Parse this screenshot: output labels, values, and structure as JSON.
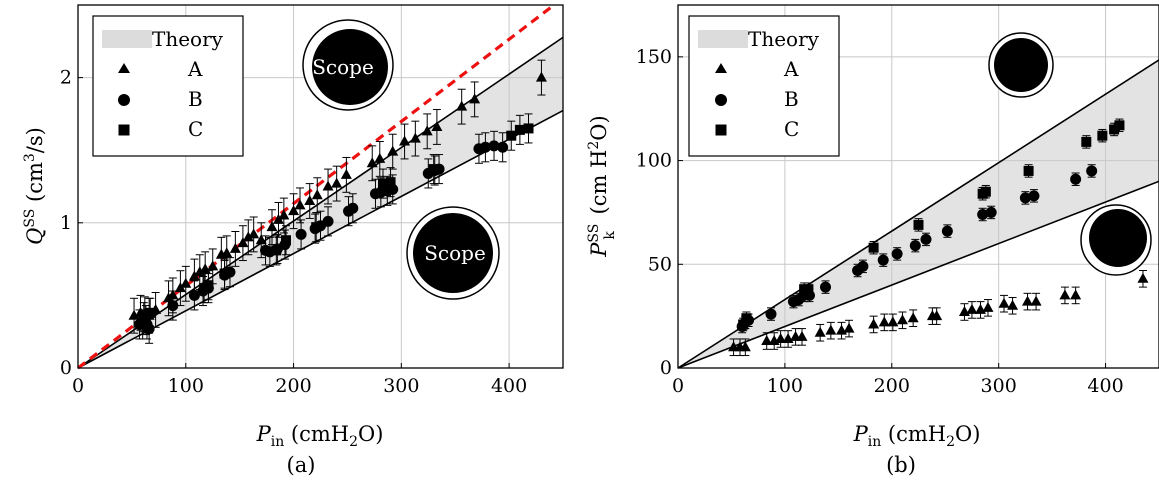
{
  "chart_data": [
    {
      "type": "scatter",
      "caption": "(a)",
      "xlabel": "P_in (cmH2O)",
      "xlabel_main": "P",
      "xlabel_sub": "in",
      "xlabel_rest": " (cmH",
      "xlabel_sub2": "2",
      "xlabel_end": "O)",
      "ylabel_main": "Q",
      "ylabel_sup": "SS",
      "ylabel_rest": " (cm",
      "ylabel_sup2": "3",
      "ylabel_end": "/s)",
      "xlim": [
        0,
        450
      ],
      "ylim": [
        0,
        2.5
      ],
      "xticks": [
        0,
        100,
        200,
        300,
        400
      ],
      "xtick_labels": [
        "0",
        "100",
        "200",
        "300",
        "400"
      ],
      "yticks": [
        0,
        1,
        2
      ],
      "ytick_labels": [
        "0",
        "1",
        "2"
      ],
      "grid": true,
      "legend_position": "top-left",
      "legend": [
        {
          "label": "Theory",
          "marker": "band"
        },
        {
          "label": "A",
          "marker": "triangle"
        },
        {
          "label": "B",
          "marker": "circle"
        },
        {
          "label": "C",
          "marker": "square"
        }
      ],
      "theory_band": {
        "lower_slope": 0.00394,
        "upper_slope": 0.00506
      },
      "dashed_line": {
        "slope": 0.00566,
        "color": "#ee1111"
      },
      "annotations": [
        "Scope",
        "Scope"
      ],
      "series": [
        {
          "name": "A",
          "marker": "triangle",
          "err": 0.12,
          "points": [
            [
              52,
              0.36
            ],
            [
              58,
              0.38
            ],
            [
              62,
              0.37
            ],
            [
              66,
              0.36
            ],
            [
              72,
              0.4
            ],
            [
              84,
              0.48
            ],
            [
              88,
              0.5
            ],
            [
              95,
              0.55
            ],
            [
              100,
              0.58
            ],
            [
              108,
              0.63
            ],
            [
              113,
              0.66
            ],
            [
              118,
              0.68
            ],
            [
              125,
              0.7
            ],
            [
              133,
              0.78
            ],
            [
              138,
              0.79
            ],
            [
              146,
              0.82
            ],
            [
              153,
              0.86
            ],
            [
              158,
              0.9
            ],
            [
              163,
              0.92
            ],
            [
              170,
              0.88
            ],
            [
              180,
              0.97
            ],
            [
              186,
              1.02
            ],
            [
              191,
              1.05
            ],
            [
              200,
              1.08
            ],
            [
              206,
              1.12
            ],
            [
              215,
              1.15
            ],
            [
              222,
              1.19
            ],
            [
              232,
              1.25
            ],
            [
              240,
              1.27
            ],
            [
              249,
              1.33
            ],
            [
              273,
              1.41
            ],
            [
              280,
              1.44
            ],
            [
              292,
              1.49
            ],
            [
              303,
              1.56
            ],
            [
              313,
              1.58
            ],
            [
              324,
              1.63
            ],
            [
              333,
              1.66
            ],
            [
              356,
              1.8
            ],
            [
              368,
              1.85
            ],
            [
              430,
              2.0
            ]
          ]
        },
        {
          "name": "B",
          "marker": "circle",
          "err": 0.1,
          "points": [
            [
              57,
              0.3
            ],
            [
              61,
              0.35
            ],
            [
              64,
              0.3
            ],
            [
              66,
              0.27
            ],
            [
              88,
              0.43
            ],
            [
              108,
              0.5
            ],
            [
              116,
              0.53
            ],
            [
              121,
              0.55
            ],
            [
              136,
              0.64
            ],
            [
              141,
              0.66
            ],
            [
              174,
              0.81
            ],
            [
              178,
              0.8
            ],
            [
              185,
              0.82
            ],
            [
              192,
              0.85
            ],
            [
              207,
              0.92
            ],
            [
              220,
              0.96
            ],
            [
              225,
              0.98
            ],
            [
              232,
              1.01
            ],
            [
              251,
              1.08
            ],
            [
              255,
              1.1
            ],
            [
              276,
              1.2
            ],
            [
              281,
              1.21
            ],
            [
              287,
              1.22
            ],
            [
              292,
              1.23
            ],
            [
              325,
              1.34
            ],
            [
              331,
              1.36
            ],
            [
              335,
              1.37
            ],
            [
              372,
              1.51
            ],
            [
              378,
              1.52
            ],
            [
              386,
              1.53
            ],
            [
              394,
              1.52
            ]
          ]
        },
        {
          "name": "C",
          "marker": "square",
          "err": 0.1,
          "points": [
            [
              60,
              0.3
            ],
            [
              63,
              0.33
            ],
            [
              67,
              0.38
            ],
            [
              117,
              0.55
            ],
            [
              121,
              0.57
            ],
            [
              136,
              0.65
            ],
            [
              184,
              0.81
            ],
            [
              193,
              0.88
            ],
            [
              221,
              0.97
            ],
            [
              283,
              1.27
            ],
            [
              290,
              1.28
            ],
            [
              330,
              1.37
            ],
            [
              402,
              1.6
            ],
            [
              410,
              1.64
            ],
            [
              418,
              1.65
            ]
          ]
        }
      ]
    },
    {
      "type": "scatter",
      "caption": "(b)",
      "xlabel_main": "P",
      "xlabel_sub": "in",
      "xlabel_rest": " (cmH",
      "xlabel_sub2": "2",
      "xlabel_end": "O)",
      "ylabel_main": "P",
      "ylabel_sup": "SS",
      "ylabel_sub": "k",
      "ylabel_rest": " (cm H",
      "ylabel_sup2": "2",
      "ylabel_end": "O)",
      "xlim": [
        0,
        450
      ],
      "ylim": [
        0,
        175
      ],
      "xticks": [
        0,
        100,
        200,
        300,
        400
      ],
      "xtick_labels": [
        "0",
        "100",
        "200",
        "300",
        "400"
      ],
      "yticks": [
        0,
        50,
        100,
        150
      ],
      "ytick_labels": [
        "0",
        "50",
        "100",
        "150"
      ],
      "grid": true,
      "legend_position": "top-left",
      "legend": [
        {
          "label": "Theory",
          "marker": "band"
        },
        {
          "label": "A",
          "marker": "triangle"
        },
        {
          "label": "B",
          "marker": "circle"
        },
        {
          "label": "C",
          "marker": "square"
        }
      ],
      "theory_band": {
        "lower_slope": 0.2,
        "upper_slope": 0.33
      },
      "series": [
        {
          "name": "A",
          "marker": "triangle",
          "err": 4,
          "points": [
            [
              52,
              10
            ],
            [
              58,
              10
            ],
            [
              63,
              10
            ],
            [
              83,
              13
            ],
            [
              90,
              13
            ],
            [
              96,
              14
            ],
            [
              103,
              14
            ],
            [
              110,
              15
            ],
            [
              116,
              15
            ],
            [
              133,
              17
            ],
            [
              143,
              18
            ],
            [
              153,
              18
            ],
            [
              160,
              19
            ],
            [
              183,
              21
            ],
            [
              193,
              22
            ],
            [
              201,
              22
            ],
            [
              210,
              23
            ],
            [
              220,
              24
            ],
            [
              238,
              25
            ],
            [
              242,
              25
            ],
            [
              268,
              27
            ],
            [
              275,
              28
            ],
            [
              283,
              28
            ],
            [
              290,
              29
            ],
            [
              305,
              31
            ],
            [
              313,
              30
            ],
            [
              327,
              32
            ],
            [
              335,
              32
            ],
            [
              362,
              35
            ],
            [
              372,
              35
            ],
            [
              435,
              43
            ]
          ]
        },
        {
          "name": "B",
          "marker": "circle",
          "err": 3,
          "points": [
            [
              60,
              20
            ],
            [
              63,
              22
            ],
            [
              66,
              23
            ],
            [
              87,
              26
            ],
            [
              108,
              32
            ],
            [
              113,
              33
            ],
            [
              118,
              35
            ],
            [
              123,
              35
            ],
            [
              138,
              39
            ],
            [
              168,
              47
            ],
            [
              173,
              49
            ],
            [
              192,
              52
            ],
            [
              205,
              55
            ],
            [
              222,
              59
            ],
            [
              232,
              62
            ],
            [
              252,
              66
            ],
            [
              285,
              74
            ],
            [
              293,
              75
            ],
            [
              325,
              82
            ],
            [
              333,
              83
            ],
            [
              372,
              91
            ],
            [
              387,
              95
            ]
          ]
        },
        {
          "name": "C",
          "marker": "square",
          "err": 3,
          "points": [
            [
              61,
              21
            ],
            [
              64,
              24
            ],
            [
              118,
              38
            ],
            [
              122,
              38
            ],
            [
              183,
              58
            ],
            [
              225,
              69
            ],
            [
              285,
              84
            ],
            [
              288,
              85
            ],
            [
              328,
              95
            ],
            [
              382,
              109
            ],
            [
              397,
              112
            ],
            [
              408,
              115
            ],
            [
              413,
              117
            ]
          ]
        }
      ]
    }
  ]
}
